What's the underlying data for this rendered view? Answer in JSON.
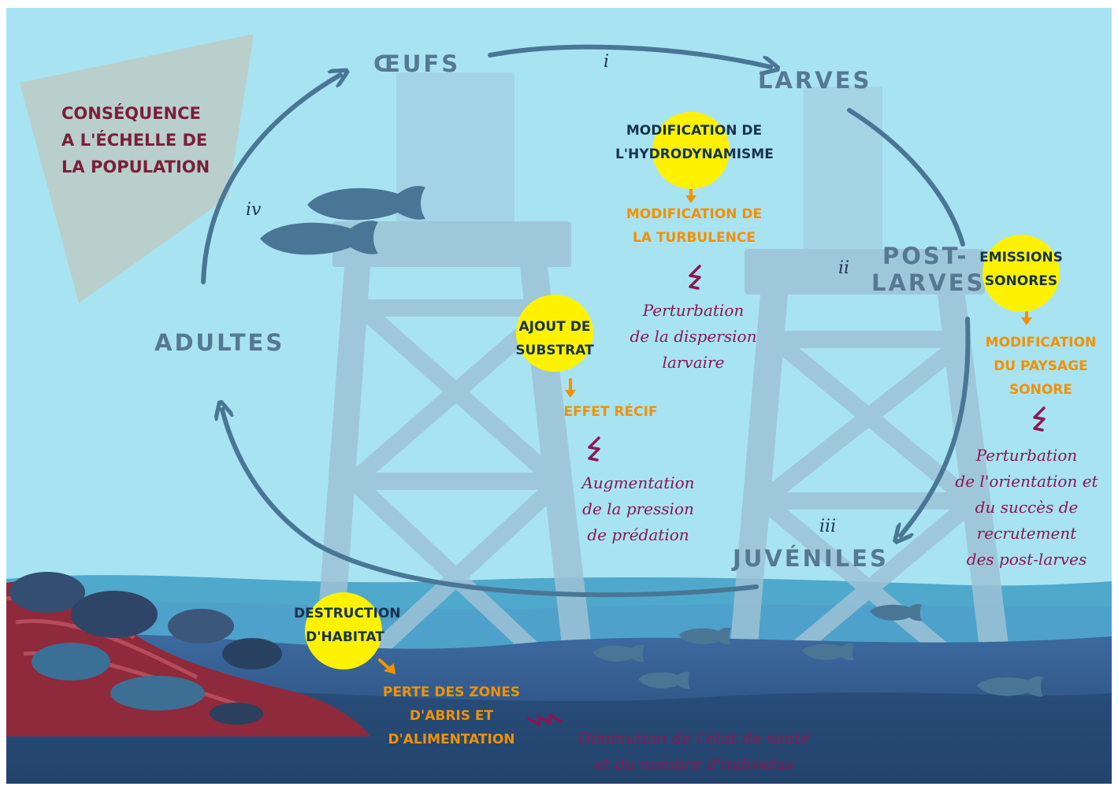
{
  "consequence": {
    "lines": [
      "CONSÉQUENCE",
      "A L'ÉCHELLE DE",
      "LA POPULATION"
    ]
  },
  "stages": {
    "oeufs": "ŒUFS",
    "larves": "LARVES",
    "postlarves": [
      "POST-",
      "LARVES"
    ],
    "juveniles": "JUVÉNILES",
    "adultes": "ADULTES"
  },
  "roman_labels": {
    "i": "i",
    "ii": "ii",
    "iii": "iii",
    "iv": "iv"
  },
  "pathways": {
    "hydro": {
      "cause": [
        "MODIFICATION DE",
        "L'HYDRODYNAMISME"
      ],
      "modification": [
        "MODIFICATION DE",
        "LA TURBULENCE"
      ],
      "perturbation": [
        "Perturbation",
        "de la dispersion",
        "larvaire"
      ]
    },
    "sonore": {
      "cause": [
        "EMISSIONS",
        "SONORES"
      ],
      "modification": [
        "MODIFICATION",
        "DU PAYSAGE",
        "SONORE"
      ],
      "perturbation": [
        "Perturbation",
        "de l'orientation et",
        "du succès de",
        "recrutement",
        "des post-larves"
      ]
    },
    "substrat": {
      "cause": [
        "AJOUT DE",
        "SUBSTRAT"
      ],
      "modification": [
        "EFFET RÉCIF"
      ],
      "perturbation": [
        "Augmentation",
        "de la pression",
        "de prédation"
      ]
    },
    "habitat": {
      "cause": [
        "DESTRUCTION",
        "D'HABITAT"
      ],
      "modification": [
        "PERTE DES ZONES",
        "D'ABRIS ET",
        "D'ALIMENTATION"
      ],
      "perturbation": [
        "Diminution de l'état de santé",
        "et du nombre d'individus"
      ]
    }
  },
  "colors": {
    "water": "#a8e3f2",
    "seabed": "#2f5b8c",
    "structure": "#9ec2d6",
    "highlight": "#fff200",
    "cause_text": "#17334d",
    "modification_text": "#f29100",
    "perturbation_text": "#8c1750",
    "consequence_text": "#7a1f38",
    "stage_text": "#567892",
    "arrow": "#4a7696"
  }
}
